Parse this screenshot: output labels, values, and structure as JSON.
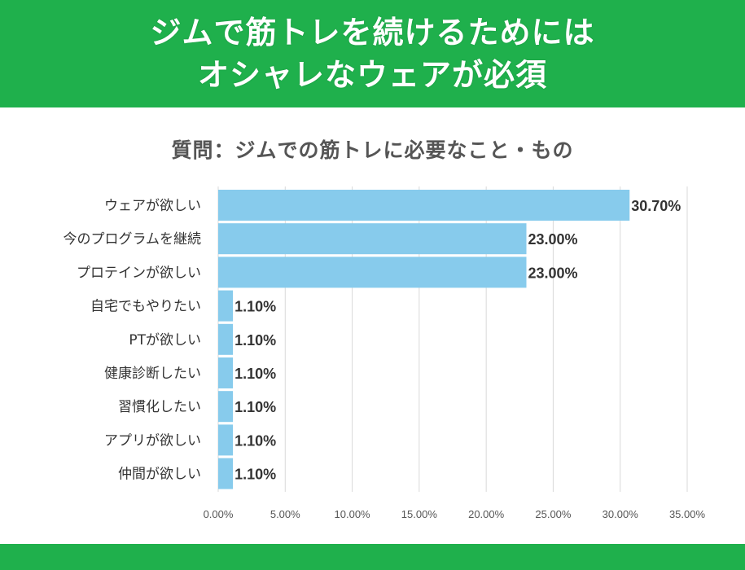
{
  "header": {
    "line1": "ジムで筋トレを続けるためには",
    "line2": "オシャレなウェアが必須"
  },
  "colors": {
    "header_bg": "#1fb04c",
    "bar": "#87cbec",
    "grid": "#d9d9d9"
  },
  "chart_data": {
    "type": "bar",
    "orientation": "horizontal",
    "title": "質問：ジムでの筋トレに必要なこと・もの",
    "categories": [
      "ウェアが欲しい",
      "今のプログラムを継続",
      "プロテインが欲しい",
      "自宅でもやりたい",
      "PTが欲しい",
      "健康診断したい",
      "習慣化したい",
      "アプリが欲しい",
      "仲間が欲しい"
    ],
    "values": [
      30.7,
      23.0,
      23.0,
      1.1,
      1.1,
      1.1,
      1.1,
      1.1,
      1.1
    ],
    "value_labels": [
      "30.70%",
      "23.00%",
      "23.00%",
      "1.10%",
      "1.10%",
      "1.10%",
      "1.10%",
      "1.10%",
      "1.10%"
    ],
    "xlim": [
      0,
      35
    ],
    "xticks": [
      "0.00%",
      "5.00%",
      "10.00%",
      "15.00%",
      "20.00%",
      "25.00%",
      "30.00%",
      "35.00%"
    ],
    "xlabel": "",
    "ylabel": "",
    "grid": true,
    "legend": "none"
  }
}
